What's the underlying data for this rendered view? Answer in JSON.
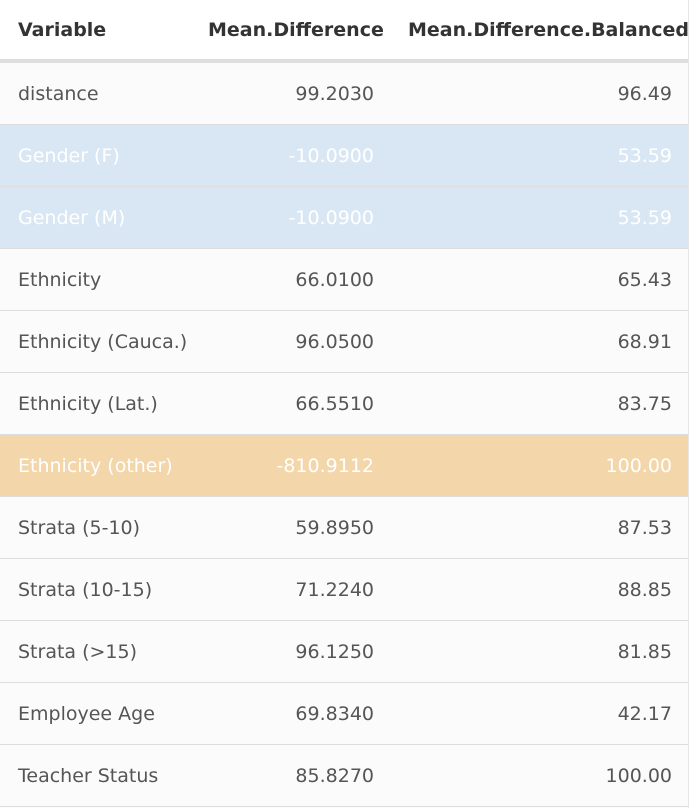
{
  "table": {
    "headers": [
      "Variable",
      "Mean.Difference",
      "Mean.Difference.Balanced"
    ],
    "rows": [
      {
        "variable": "distance",
        "mean_difference": "99.2030",
        "mean_difference_balanced": "96.49",
        "highlight": "none"
      },
      {
        "variable": "Gender (F)",
        "mean_difference": "-10.0900",
        "mean_difference_balanced": "53.59",
        "highlight": "blue"
      },
      {
        "variable": "Gender (M)",
        "mean_difference": "-10.0900",
        "mean_difference_balanced": "53.59",
        "highlight": "blue"
      },
      {
        "variable": "Ethnicity",
        "mean_difference": "66.0100",
        "mean_difference_balanced": "65.43",
        "highlight": "none"
      },
      {
        "variable": "Ethnicity (Cauca.)",
        "mean_difference": "96.0500",
        "mean_difference_balanced": "68.91",
        "highlight": "none"
      },
      {
        "variable": "Ethnicity (Lat.)",
        "mean_difference": "66.5510",
        "mean_difference_balanced": "83.75",
        "highlight": "none"
      },
      {
        "variable": "Ethnicity (other)",
        "mean_difference": "-810.9112",
        "mean_difference_balanced": "100.00",
        "highlight": "orange"
      },
      {
        "variable": "Strata (5-10)",
        "mean_difference": "59.8950",
        "mean_difference_balanced": "87.53",
        "highlight": "none"
      },
      {
        "variable": "Strata (10-15)",
        "mean_difference": "71.2240",
        "mean_difference_balanced": "88.85",
        "highlight": "none"
      },
      {
        "variable": "Strata (>15)",
        "mean_difference": "96.1250",
        "mean_difference_balanced": "81.85",
        "highlight": "none"
      },
      {
        "variable": "Employee Age",
        "mean_difference": "69.8340",
        "mean_difference_balanced": "42.17",
        "highlight": "none"
      },
      {
        "variable": "Teacher Status",
        "mean_difference": "85.8270",
        "mean_difference_balanced": "100.00",
        "highlight": "none"
      }
    ]
  },
  "colors": {
    "blue_highlight": "#d9e7f4",
    "orange_highlight": "#f3d6aa",
    "text": "#555555",
    "header_text": "#333333"
  }
}
